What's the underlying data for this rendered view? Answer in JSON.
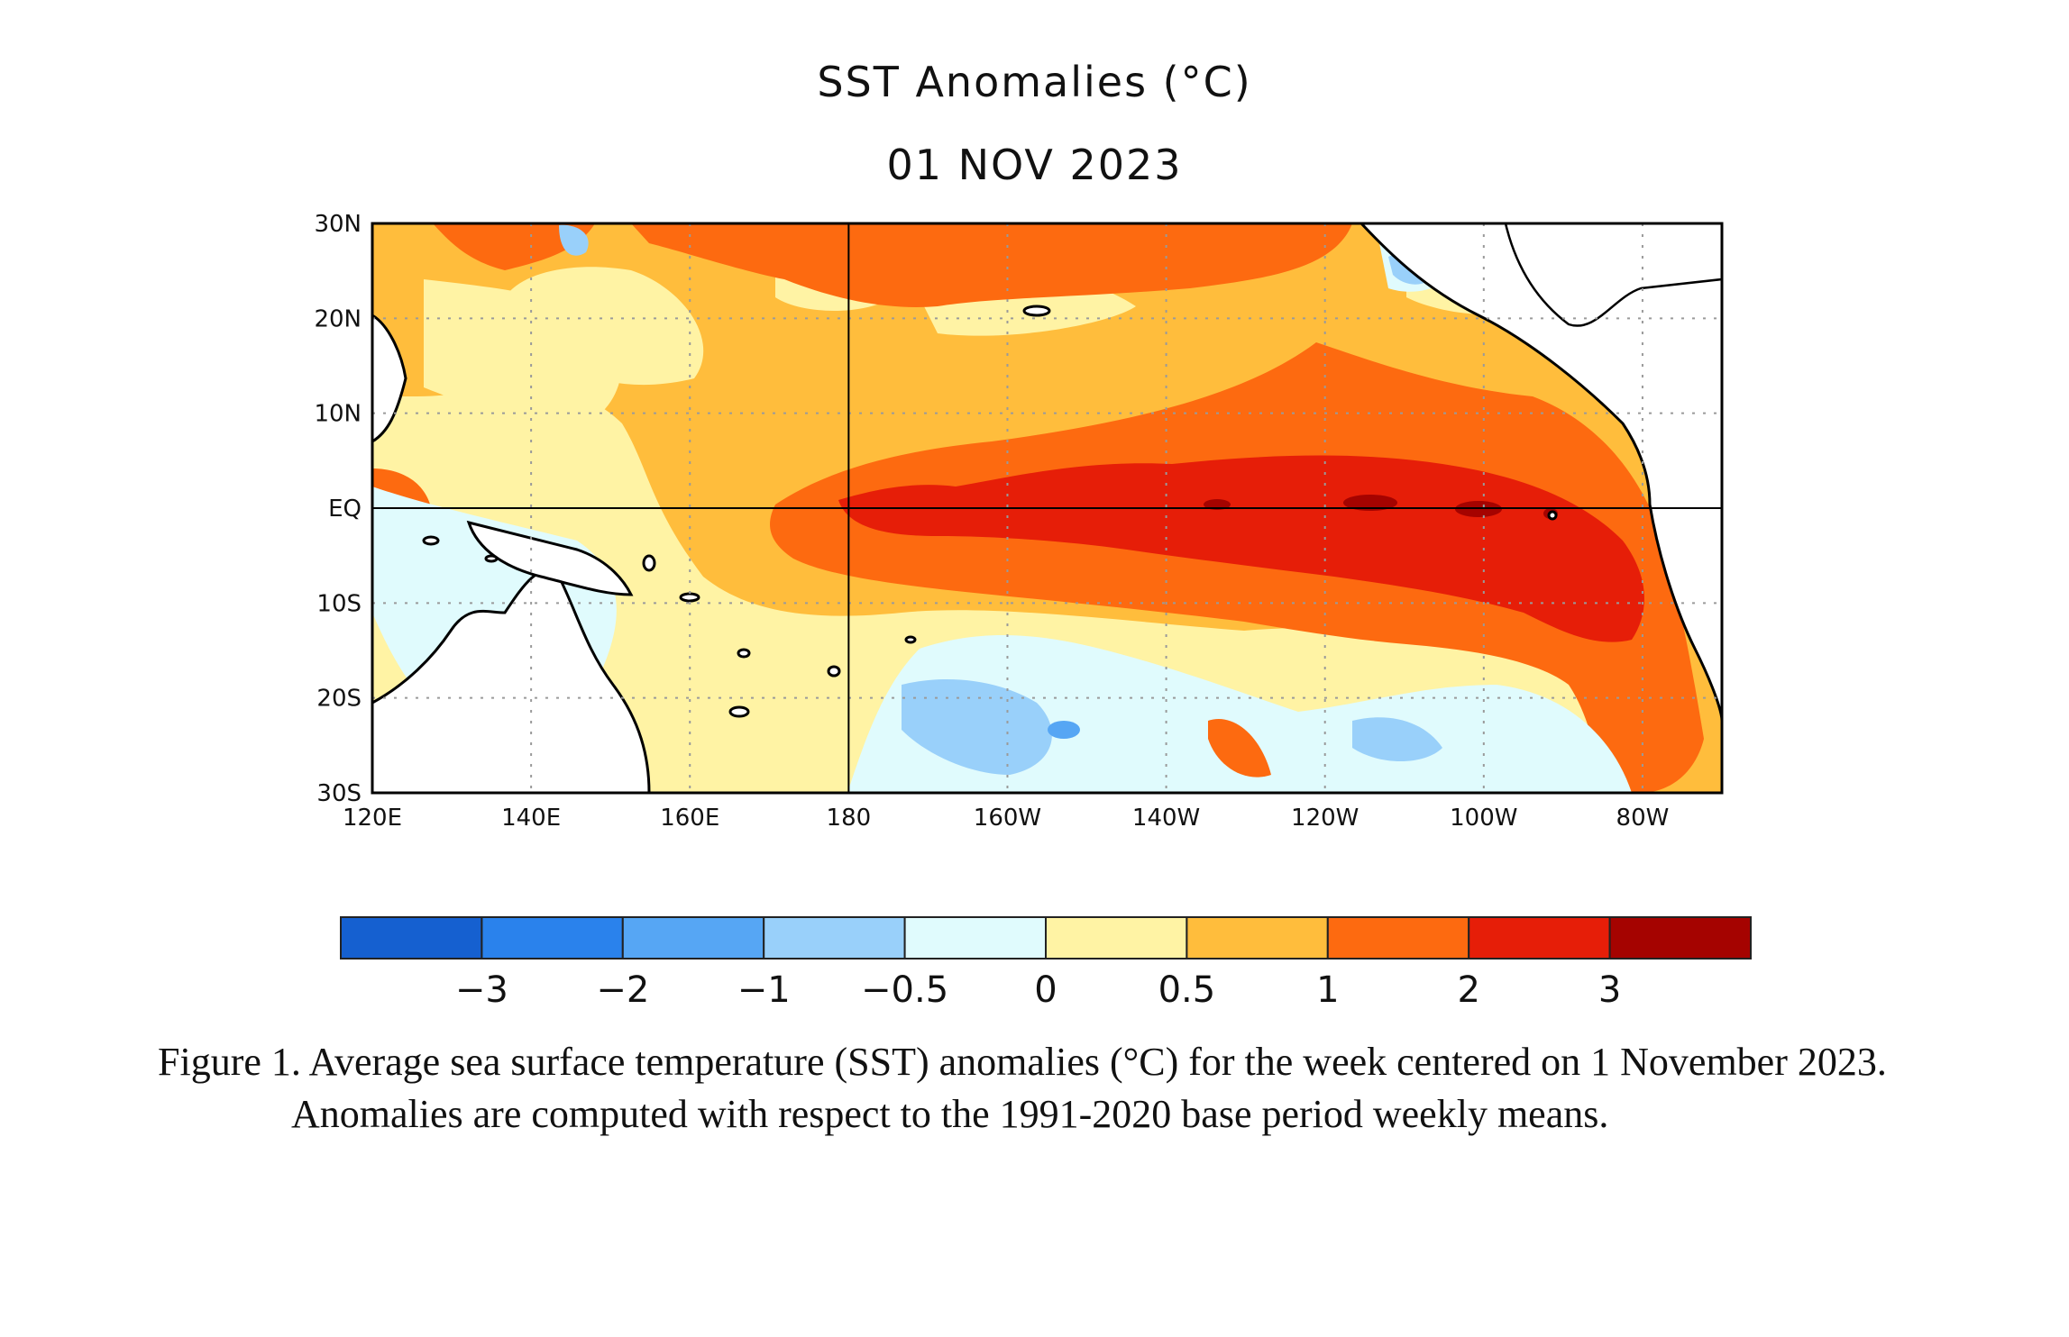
{
  "title": "SST Anomalies (°C)",
  "date": "01 NOV 2023",
  "map": {
    "lon_range": [
      120,
      290
    ],
    "lat_range": [
      -30,
      30
    ],
    "lat_ticks": [
      "30N",
      "20N",
      "10N",
      "EQ",
      "10S",
      "20S",
      "30S"
    ],
    "lon_ticks": [
      "120E",
      "140E",
      "160E",
      "180",
      "160W",
      "140W",
      "120W",
      "100W",
      "80W"
    ],
    "colors": {
      "neg3": "#1560d0",
      "neg2": "#2a82ec",
      "neg1": "#56a6f4",
      "neg05": "#99d0fa",
      "zero_neg": "#e0fbfd",
      "zero_pos": "#fff3a4",
      "pos05": "#ffbd3c",
      "pos1": "#fd6a10",
      "pos2": "#e61e08",
      "pos3": "#a50300",
      "land": "#ffffff",
      "coast": "#000000"
    }
  },
  "colorbar": {
    "colors": [
      "#1560d0",
      "#2a82ec",
      "#56a6f4",
      "#99d0fa",
      "#e0fbfd",
      "#fff3a4",
      "#ffbd3c",
      "#fd6a10",
      "#e61e08",
      "#a50300"
    ],
    "labels": [
      "−3",
      "−2",
      "−1",
      "−0.5",
      "0",
      "0.5",
      "1",
      "2",
      "3"
    ]
  },
  "caption": "Figure 1. Average sea surface temperature (SST) anomalies (°C) for the week centered on 1 November 2023.  Anomalies are computed with respect to the 1991-2020 base period weekly means."
}
